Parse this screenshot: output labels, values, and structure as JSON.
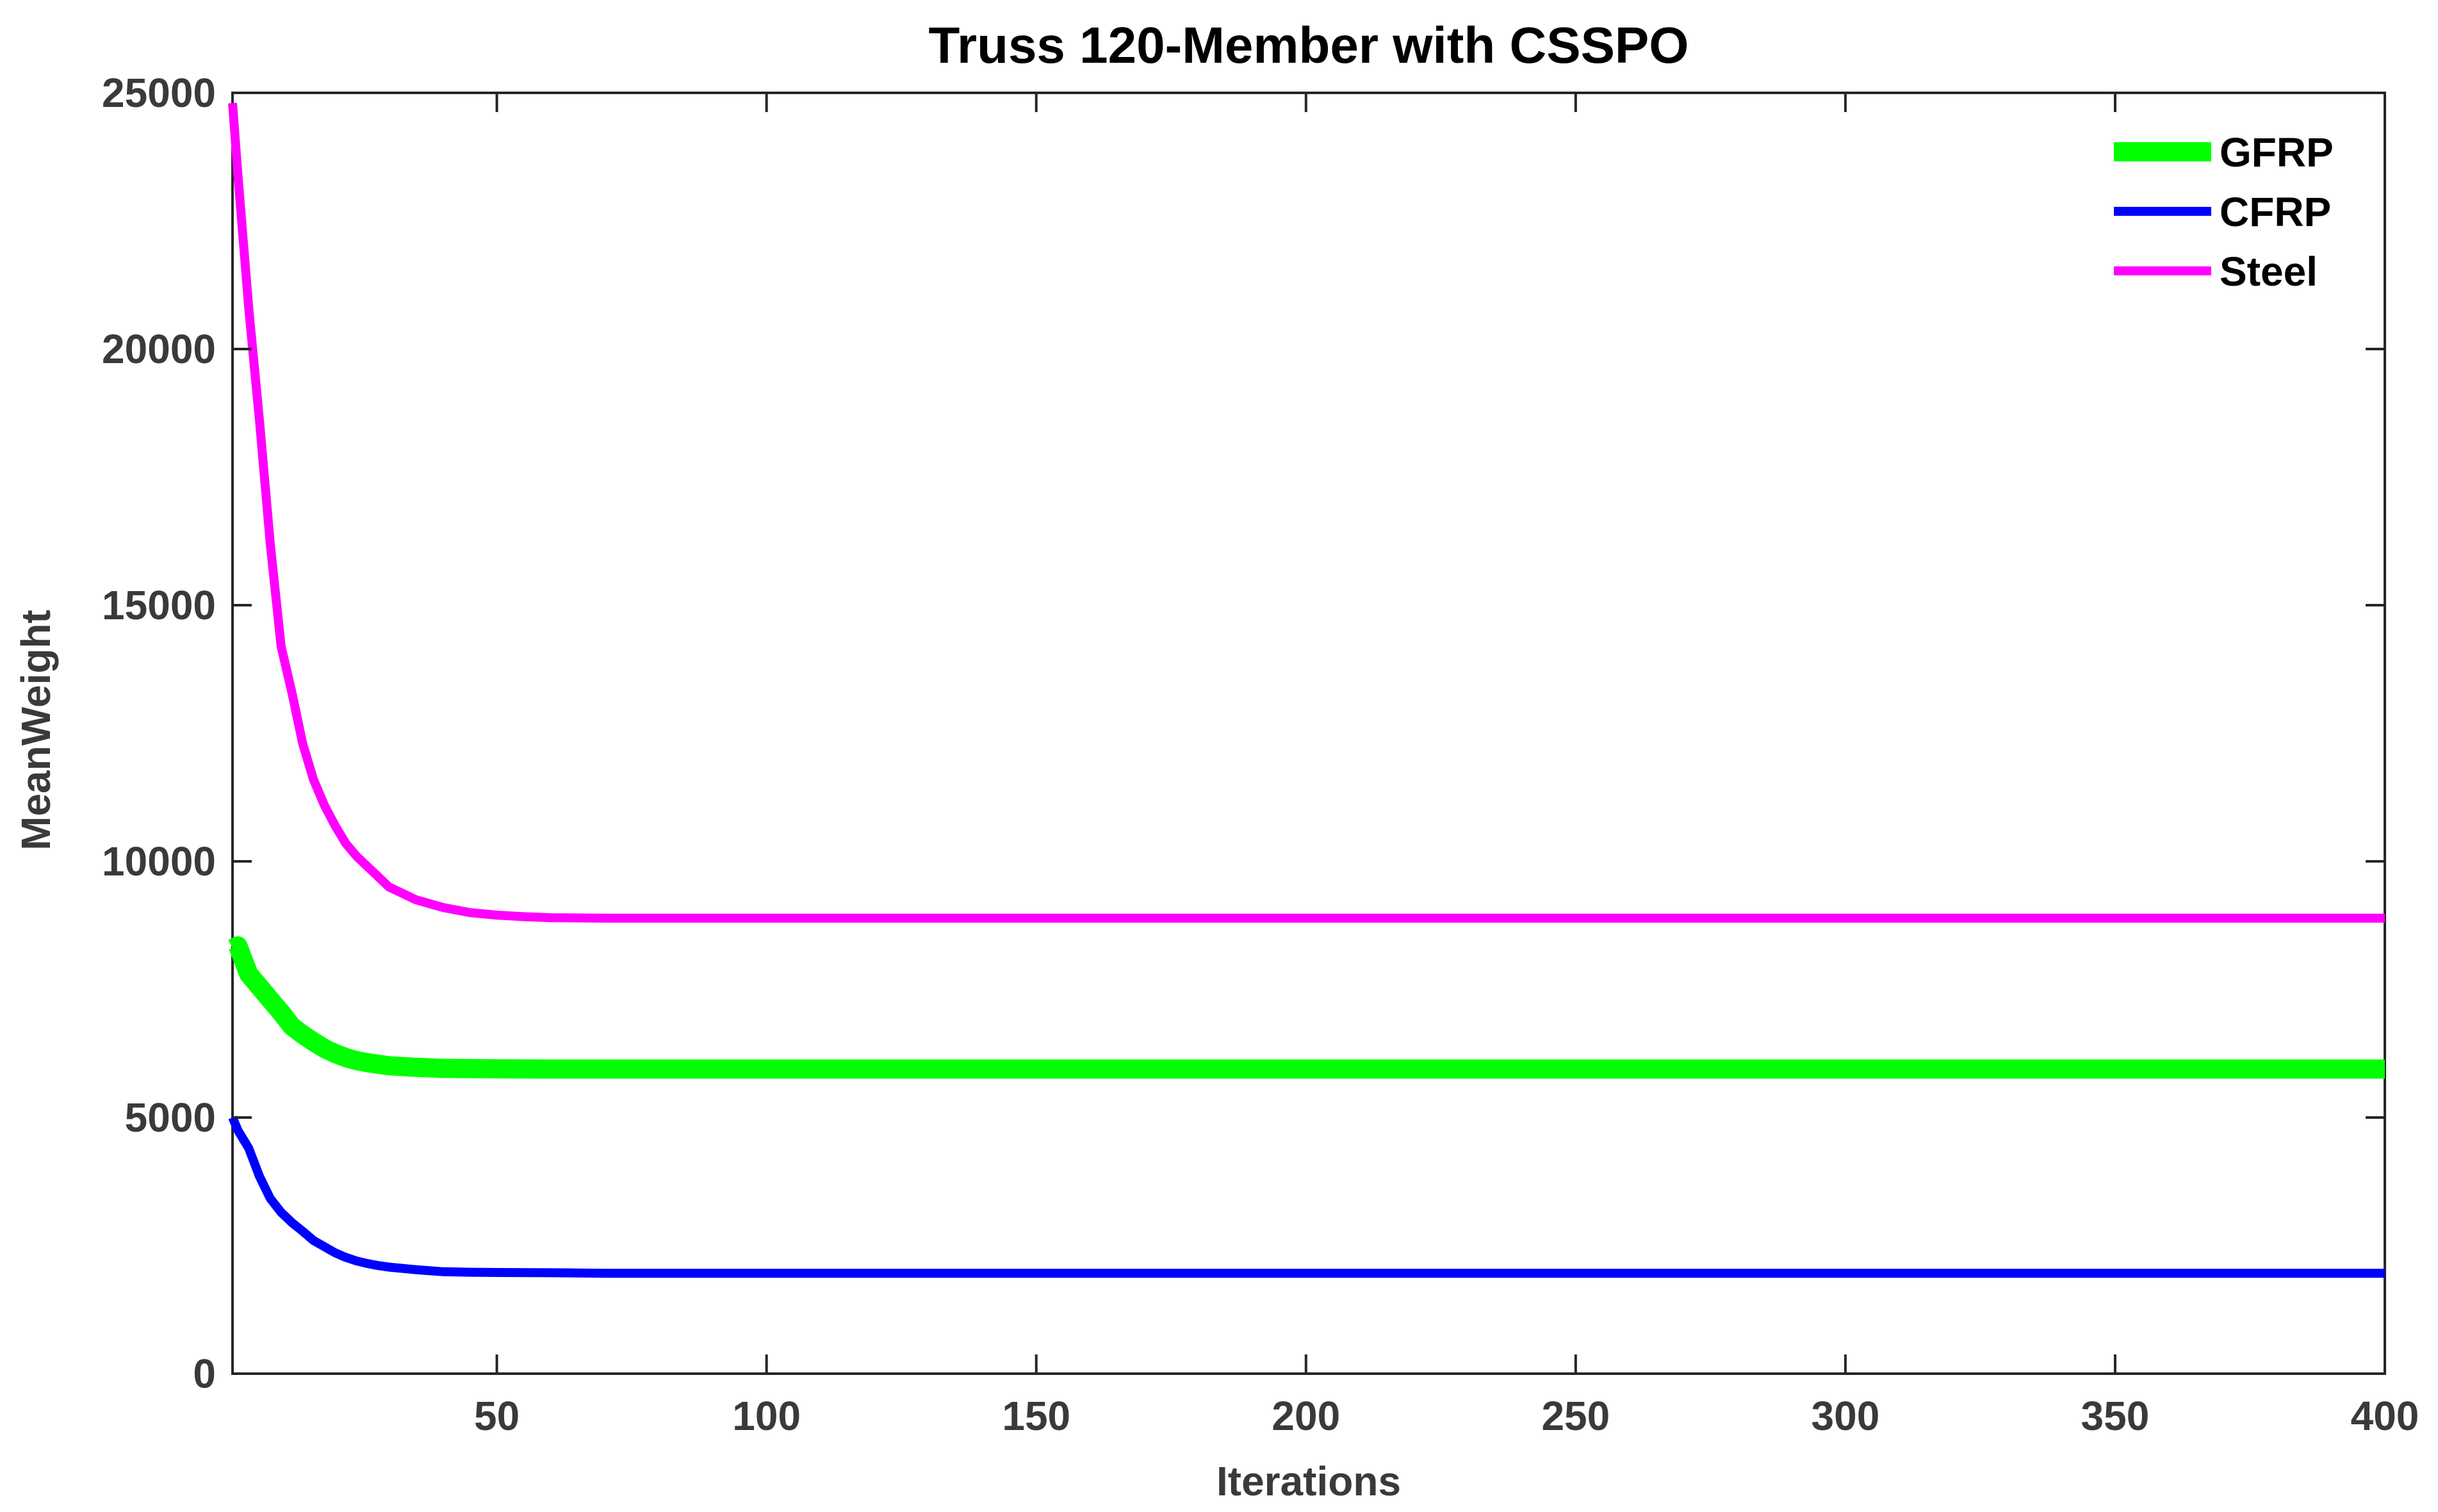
{
  "chart_data": {
    "type": "line",
    "title": "Truss 120-Member with CSSPO",
    "xlabel": "Iterations",
    "ylabel": "MeanWeight",
    "xlim": [
      1,
      400
    ],
    "ylim": [
      0,
      25000
    ],
    "x_ticks": [
      50,
      100,
      150,
      200,
      250,
      300,
      350,
      400
    ],
    "y_ticks": [
      0,
      5000,
      10000,
      15000,
      20000,
      25000
    ],
    "grid": false,
    "legend_position": "top-right",
    "series": [
      {
        "name": "GFRP",
        "color": "#00ff00",
        "x": [
          1,
          2,
          4,
          6,
          8,
          10,
          12,
          14,
          16,
          18,
          20,
          22,
          24,
          26,
          28,
          30,
          35,
          40,
          45,
          50,
          60,
          70,
          80,
          100,
          150,
          200,
          250,
          300,
          350,
          400
        ],
        "y": [
          8300,
          8350,
          7800,
          7550,
          7300,
          7050,
          6780,
          6620,
          6480,
          6350,
          6250,
          6170,
          6110,
          6070,
          6040,
          6010,
          5980,
          5960,
          5955,
          5950,
          5945,
          5945,
          5945,
          5945,
          5945,
          5945,
          5945,
          5945,
          5945,
          5945
        ]
      },
      {
        "name": "CFRP",
        "color": "#0000ff",
        "x": [
          1,
          2,
          4,
          6,
          8,
          10,
          12,
          14,
          16,
          18,
          20,
          22,
          24,
          26,
          28,
          30,
          35,
          40,
          45,
          50,
          60,
          70,
          80,
          100,
          150,
          200,
          250,
          300,
          350,
          400
        ],
        "y": [
          5000,
          4750,
          4400,
          3850,
          3420,
          3150,
          2950,
          2780,
          2600,
          2480,
          2360,
          2270,
          2200,
          2150,
          2110,
          2080,
          2030,
          1990,
          1980,
          1975,
          1970,
          1960,
          1960,
          1960,
          1960,
          1960,
          1960,
          1960,
          1960,
          1960
        ]
      },
      {
        "name": "Steel",
        "color": "#ff00ff",
        "x": [
          1,
          2,
          4,
          6,
          8,
          10,
          12,
          14,
          16,
          18,
          20,
          22,
          24,
          26,
          28,
          30,
          32,
          35,
          40,
          45,
          50,
          55,
          60,
          70,
          80,
          100,
          150,
          200,
          250,
          300,
          350,
          400
        ],
        "y": [
          24800,
          23400,
          20800,
          18600,
          16200,
          14200,
          13300,
          12300,
          11600,
          11100,
          10700,
          10350,
          10100,
          9900,
          9700,
          9500,
          9400,
          9250,
          9100,
          9000,
          8950,
          8920,
          8900,
          8890,
          8890,
          8890,
          8890,
          8890,
          8890,
          8890,
          8890,
          8890
        ]
      }
    ]
  }
}
